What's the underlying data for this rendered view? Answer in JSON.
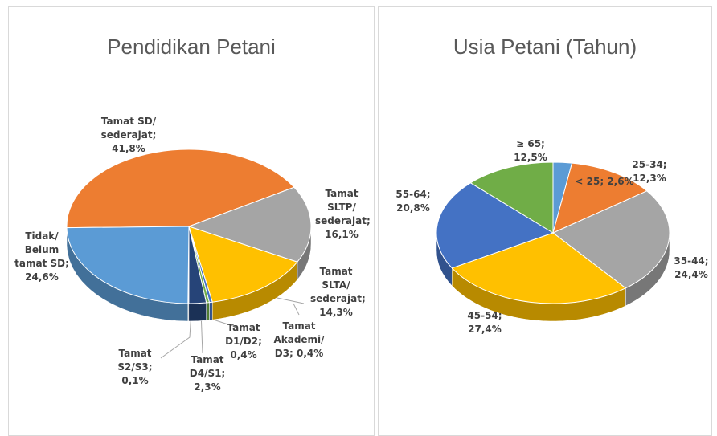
{
  "chart_data": [
    {
      "type": "pie",
      "title": "Pendidikan Petani",
      "categories": [
        "Tamat SD/ sederajat;",
        "Tamat SLTP/ sederajat;",
        "Tamat SLTA/ sederajat;",
        "Tamat Akademi/ D3;",
        "Tamat D1/D2;",
        "Tamat D4/S1;",
        "Tamat S2/S3;",
        "Tidak/ Belum tamat SD;"
      ],
      "values": [
        41.8,
        16.1,
        14.3,
        0.4,
        0.4,
        2.3,
        0.1,
        24.6
      ],
      "value_labels": [
        "41,8%",
        "16,1%",
        "14,3%",
        "0,4%",
        "0,4%",
        "2,3%",
        "0,1%",
        "24,6%"
      ],
      "colors": [
        "#ed7d31",
        "#a5a5a5",
        "#ffc000",
        "#4472c4",
        "#70ad47",
        "#264478",
        "#f2f2f2",
        "#5b9bd5"
      ]
    },
    {
      "type": "pie",
      "title": "Usia Petani (Tahun)",
      "categories": [
        "< 25;",
        "25-34;",
        "35-44;",
        "45-54;",
        "55-64;",
        "≥ 65;"
      ],
      "values": [
        2.6,
        12.3,
        24.4,
        27.4,
        20.8,
        12.5
      ],
      "value_labels": [
        "2,6%",
        "12,3%",
        "24,4%",
        "27,4%",
        "20,8%",
        "12,5%"
      ],
      "colors": [
        "#5b9bd5",
        "#ed7d31",
        "#a5a5a5",
        "#ffc000",
        "#4472c4",
        "#70ad47"
      ]
    }
  ]
}
